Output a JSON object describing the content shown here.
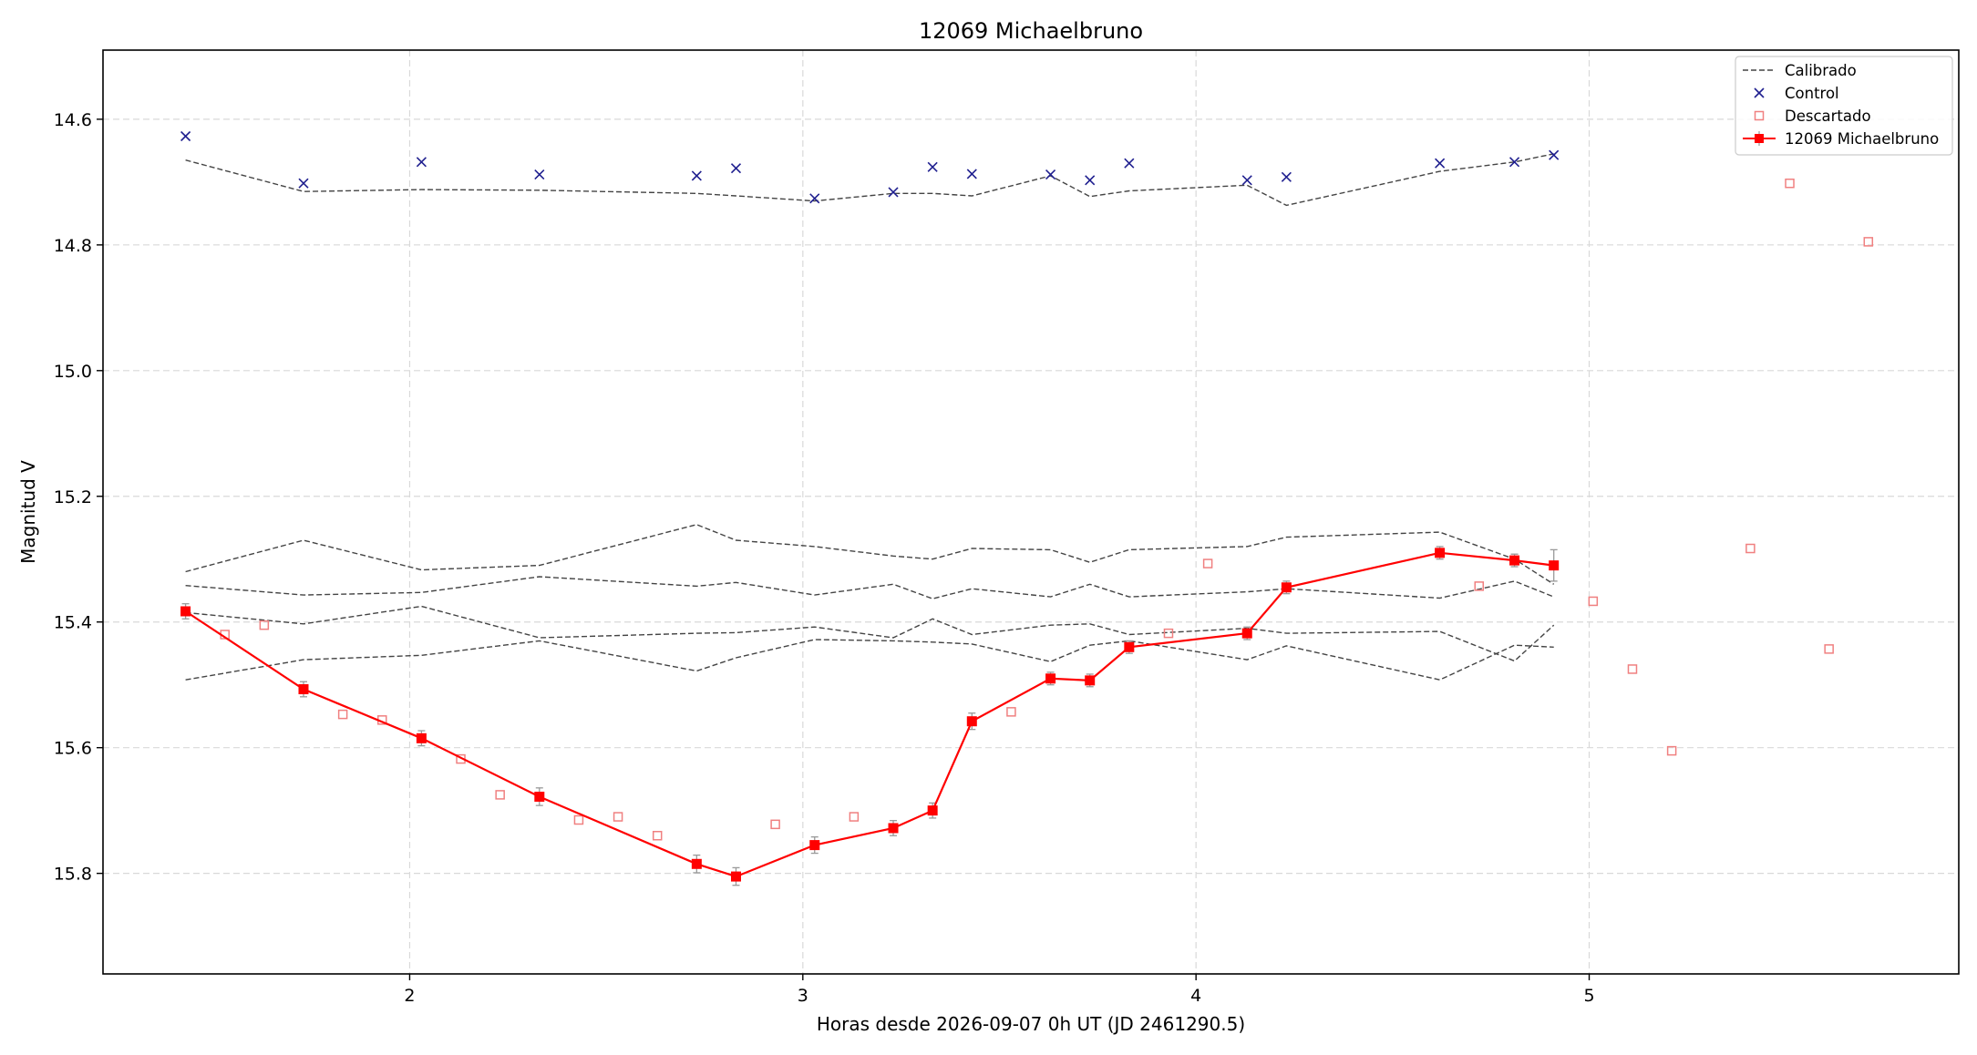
{
  "chart_data": {
    "type": "line",
    "title": "12069 Michaelbruno",
    "xlabel": "Horas desde 2026-09-07 0h UT (JD 2461290.5)",
    "ylabel": "Magnitud V",
    "xlim": [
      1.22,
      5.94
    ],
    "ylim": [
      15.96,
      14.49
    ],
    "y_inverted": true,
    "grid": true,
    "legend_position": "top-right",
    "xticks": [
      2,
      3,
      4,
      5
    ],
    "yticks": [
      14.6,
      14.8,
      15.0,
      15.2,
      15.4,
      15.6,
      15.8
    ],
    "ytick_labels": [
      "14.6",
      "14.8",
      "15.0",
      "15.2",
      "15.4",
      "15.6",
      "15.8"
    ],
    "legend": [
      {
        "label": "Calibrado",
        "style": "dashed-line",
        "color": "#444444"
      },
      {
        "label": "Control",
        "style": "x-marker",
        "color": "#1f1f8f"
      },
      {
        "label": "Descartado",
        "style": "open-square",
        "color": "#f08080"
      },
      {
        "label": "12069 Michaelbruno",
        "style": "line-square-errorbar",
        "color": "#ff0000"
      }
    ],
    "calibrated": [
      {
        "x": [
          1.43,
          1.73,
          2.03,
          2.33,
          2.73,
          2.83,
          3.03,
          3.23,
          3.33,
          3.43,
          3.63,
          3.73,
          3.83,
          4.13,
          4.23,
          4.62,
          4.81,
          4.91
        ],
        "y": [
          14.665,
          14.715,
          14.712,
          14.713,
          14.718,
          14.722,
          14.73,
          14.718,
          14.718,
          14.722,
          14.69,
          14.723,
          14.714,
          14.705,
          14.737,
          14.683,
          14.668,
          14.655
        ]
      },
      {
        "x": [
          1.43,
          1.73,
          2.03,
          2.33,
          2.73,
          2.83,
          3.03,
          3.23,
          3.33,
          3.43,
          3.63,
          3.73,
          3.83,
          4.13,
          4.23,
          4.62,
          4.81,
          4.91
        ],
        "y": [
          15.32,
          15.27,
          15.317,
          15.31,
          15.245,
          15.27,
          15.28,
          15.295,
          15.3,
          15.283,
          15.285,
          15.305,
          15.285,
          15.28,
          15.265,
          15.257,
          15.3,
          15.34
        ]
      },
      {
        "x": [
          1.43,
          1.73,
          2.03,
          2.33,
          2.73,
          2.83,
          3.03,
          3.23,
          3.33,
          3.43,
          3.63,
          3.73,
          3.83,
          4.13,
          4.23,
          4.62,
          4.81,
          4.91
        ],
        "y": [
          15.342,
          15.357,
          15.353,
          15.328,
          15.343,
          15.337,
          15.357,
          15.34,
          15.363,
          15.347,
          15.36,
          15.34,
          15.36,
          15.352,
          15.347,
          15.362,
          15.335,
          15.36
        ]
      },
      {
        "x": [
          1.43,
          1.73,
          2.03,
          2.33,
          2.73,
          2.83,
          3.03,
          3.23,
          3.33,
          3.43,
          3.63,
          3.73,
          3.83,
          4.13,
          4.23,
          4.62,
          4.81,
          4.91
        ],
        "y": [
          15.385,
          15.403,
          15.375,
          15.425,
          15.418,
          15.417,
          15.408,
          15.425,
          15.395,
          15.42,
          15.405,
          15.403,
          15.42,
          15.41,
          15.418,
          15.415,
          15.462,
          15.405
        ]
      },
      {
        "x": [
          1.43,
          1.73,
          2.03,
          2.33,
          2.73,
          2.83,
          3.03,
          3.23,
          3.33,
          3.43,
          3.63,
          3.73,
          3.83,
          4.13,
          4.23,
          4.62,
          4.81,
          4.91
        ],
        "y": [
          15.492,
          15.46,
          15.453,
          15.43,
          15.478,
          15.457,
          15.428,
          15.43,
          15.432,
          15.435,
          15.463,
          15.437,
          15.43,
          15.46,
          15.438,
          15.492,
          15.437,
          15.44
        ]
      }
    ],
    "control": {
      "x": [
        1.43,
        1.73,
        2.03,
        2.33,
        2.73,
        2.83,
        3.03,
        3.23,
        3.33,
        3.43,
        3.63,
        3.73,
        3.83,
        4.13,
        4.23,
        4.62,
        4.81,
        4.91
      ],
      "y": [
        14.627,
        14.702,
        14.668,
        14.688,
        14.69,
        14.678,
        14.726,
        14.716,
        14.676,
        14.687,
        14.688,
        14.697,
        14.67,
        14.697,
        14.692,
        14.67,
        14.668,
        14.657
      ]
    },
    "discarded": {
      "x": [
        1.53,
        1.63,
        1.83,
        1.93,
        2.13,
        2.23,
        2.43,
        2.53,
        2.63,
        2.93,
        3.13,
        3.53,
        3.93,
        4.03,
        4.72,
        5.01,
        5.11,
        5.21,
        5.41,
        5.51,
        5.61,
        5.71
      ],
      "y": [
        15.42,
        15.405,
        15.547,
        15.556,
        15.618,
        15.675,
        15.715,
        15.71,
        15.74,
        15.722,
        15.71,
        15.543,
        15.418,
        15.307,
        15.343,
        15.367,
        15.475,
        15.605,
        15.283,
        14.702,
        15.443,
        14.795
      ]
    },
    "target": {
      "name": "12069 Michaelbruno",
      "x": [
        1.43,
        1.73,
        2.03,
        2.33,
        2.73,
        2.83,
        3.03,
        3.23,
        3.33,
        3.43,
        3.63,
        3.73,
        3.83,
        4.13,
        4.23,
        4.62,
        4.81,
        4.91
      ],
      "y": [
        15.383,
        15.507,
        15.585,
        15.678,
        15.785,
        15.805,
        15.755,
        15.728,
        15.7,
        15.558,
        15.49,
        15.493,
        15.44,
        15.418,
        15.345,
        15.29,
        15.302,
        15.31
      ],
      "err": [
        0.012,
        0.012,
        0.012,
        0.014,
        0.014,
        0.014,
        0.013,
        0.012,
        0.012,
        0.013,
        0.01,
        0.01,
        0.01,
        0.01,
        0.01,
        0.01,
        0.01,
        0.025
      ]
    }
  }
}
